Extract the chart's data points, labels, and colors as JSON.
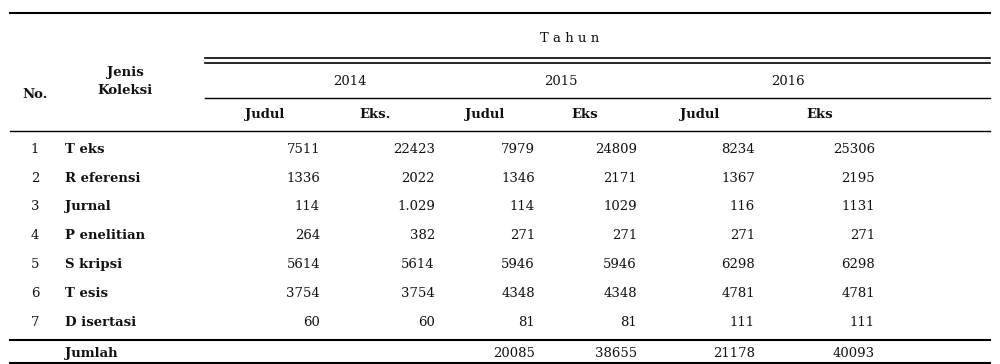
{
  "title": "T a h u n",
  "bg_color": "#ffffff",
  "text_color": "#111111",
  "rows": [
    [
      "1",
      "T eks",
      "7511",
      "22423",
      "7979",
      "24809",
      "8234",
      "25306"
    ],
    [
      "2",
      "R eferensi",
      "1336",
      "2022",
      "1346",
      "2171",
      "1367",
      "2195"
    ],
    [
      "3",
      "Jurnal",
      "114",
      "1.029",
      "114",
      "1029",
      "116",
      "1131"
    ],
    [
      "4",
      "P enelitian",
      "264",
      "382",
      "271",
      "271",
      "271",
      "271"
    ],
    [
      "5",
      "S kripsi",
      "5614",
      "5614",
      "5946",
      "5946",
      "6298",
      "6298"
    ],
    [
      "6",
      "T esis",
      "3754",
      "3754",
      "4348",
      "4348",
      "4781",
      "4781"
    ],
    [
      "7",
      "D isertasi",
      "60",
      "60",
      "81",
      "81",
      "111",
      "111"
    ]
  ],
  "footer_label": "Jumlah",
  "footer_values": [
    "",
    "",
    "20085",
    "38655",
    "21178",
    "40093"
  ],
  "years": [
    "2014",
    "2015",
    "2016"
  ],
  "col_sub": [
    "Judul",
    "Eks.",
    "Judul",
    "Eks",
    "Judul",
    "Eks"
  ],
  "no_header": "No.",
  "jenis_header": "Jenis\nKoleksi"
}
